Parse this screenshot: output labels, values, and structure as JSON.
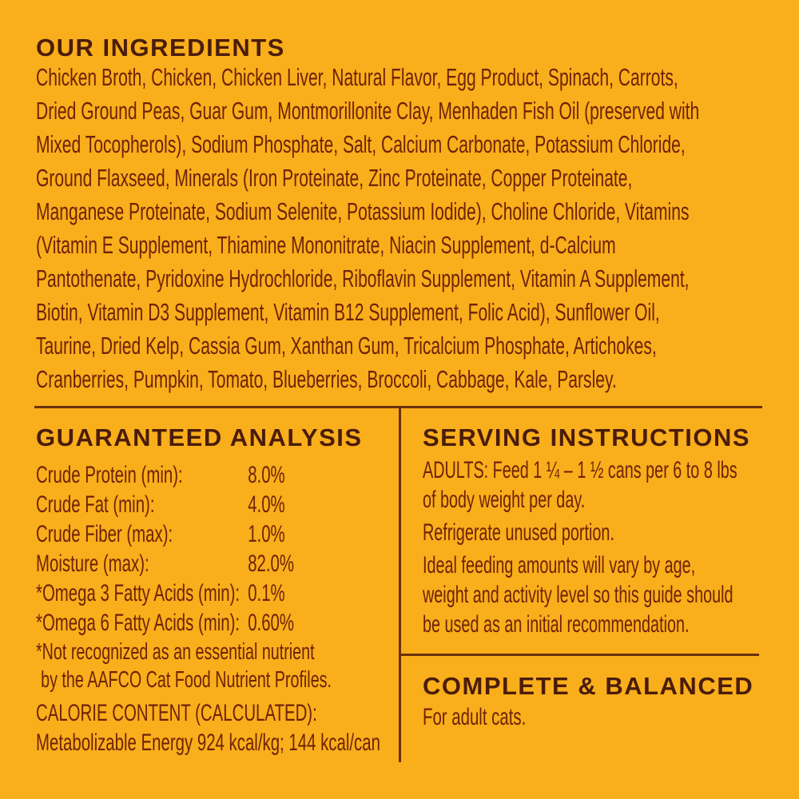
{
  "colors": {
    "background": "#F9AE1B",
    "heading": "#4A1C0A",
    "body": "#6E2306",
    "divider": "#693209"
  },
  "ingredients": {
    "heading": "OUR INGREDIENTS",
    "text": "Chicken Broth, Chicken, Chicken Liver, Natural Flavor, Egg Product, Spinach, Carrots, Dried Ground Peas, Guar Gum, Montmorillonite Clay, Menhaden Fish Oil (preserved with Mixed Tocopherols), Sodium Phosphate, Salt, Calcium Carbonate, Potassium Chloride, Ground Flaxseed, Minerals (Iron Proteinate, Zinc Proteinate, Copper Proteinate, Manganese Proteinate, Sodium Selenite, Potassium Iodide), Choline Chloride, Vitamins (Vitamin E Supplement, Thiamine Mononitrate, Niacin Supplement, d-Calcium Pantothenate, Pyridoxine Hydrochloride, Riboflavin Supplement, Vitamin A Supplement, Biotin, Vitamin D3 Supplement, Vitamin B12 Supplement, Folic Acid), Sunflower Oil, Taurine, Dried Kelp, Cassia Gum, Xanthan Gum, Tricalcium Phosphate, Artichokes, Cranberries, Pumpkin, Tomato, Blueberries, Broccoli, Cabbage, Kale, Parsley."
  },
  "guaranteed_analysis": {
    "heading": "GUARANTEED ANALYSIS",
    "rows": [
      {
        "label": "Crude Protein (min):",
        "value": "8.0%"
      },
      {
        "label": "Crude Fat (min):",
        "value": "4.0%"
      },
      {
        "label": "Crude Fiber (max):",
        "value": "1.0%"
      },
      {
        "label": "Moisture (max):",
        "value": "82.0%"
      },
      {
        "label": "*Omega 3 Fatty Acids (min):",
        "value": "0.1%"
      },
      {
        "label": "*Omega 6 Fatty Acids (min):",
        "value": "0.60%"
      }
    ],
    "footnote_line1": "*Not recognized as an essential nutrient",
    "footnote_line2": "by the AAFCO Cat Food Nutrient Profiles.",
    "calorie_heading": "CALORIE CONTENT (CALCULATED):",
    "calorie_text": "Metabolizable Energy 924 kcal/kg; 144 kcal/can"
  },
  "serving_instructions": {
    "heading": "SERVING INSTRUCTIONS",
    "adults": "ADULTS: Feed 1 ¼ – 1 ½ cans per 6 to 8 lbs of body weight per day.",
    "refrigerate": "Refrigerate unused portion.",
    "ideal": "Ideal feeding amounts will vary by age, weight and activity level so this guide should be used as an initial recommendation."
  },
  "complete_balanced": {
    "heading": "COMPLETE & BALANCED",
    "text": "For adult cats."
  }
}
